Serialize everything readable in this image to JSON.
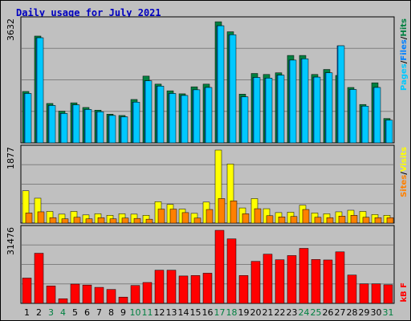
{
  "title": "Daily usage for July 2021",
  "colors": {
    "background": "#c0c0c0",
    "pages": "#00c8ff",
    "files": "#0080ff",
    "hits": "#008040",
    "visits": "#ffff00",
    "sites": "#ff8000",
    "kbytes": "#ff0000",
    "title": "#0000c0",
    "weekend_day": "#008040"
  },
  "chart_data": [
    {
      "type": "bar",
      "panel": "hits-files-pages",
      "y_max_label": "3632",
      "ylim": [
        0,
        3632
      ],
      "grid": true,
      "legend_labels": [
        "Pages",
        "/",
        "Files",
        "/",
        "Hits"
      ],
      "categories": [
        "1",
        "2",
        "3",
        "4",
        "5",
        "6",
        "7",
        "8",
        "9",
        "10",
        "11",
        "12",
        "13",
        "14",
        "15",
        "16",
        "17",
        "18",
        "19",
        "20",
        "21",
        "22",
        "23",
        "24",
        "25",
        "26",
        "27",
        "28",
        "29",
        "30",
        "31"
      ],
      "series": [
        {
          "name": "Hits",
          "values": [
            1540,
            3200,
            1180,
            950,
            1200,
            1060,
            980,
            860,
            820,
            1300,
            2000,
            1760,
            1560,
            1470,
            1680,
            1760,
            3630,
            3330,
            1460,
            2080,
            2050,
            2100,
            2620,
            2620,
            2050,
            2200,
            2020,
            1660,
            1150,
            1800,
            730
          ]
        },
        {
          "name": "Files",
          "values": [
            1480,
            3150,
            1120,
            880,
            1140,
            1000,
            930,
            820,
            780,
            1220,
            1860,
            1700,
            1480,
            1420,
            1590,
            1660,
            3510,
            3240,
            1380,
            1960,
            1940,
            2030,
            2480,
            2520,
            1970,
            2100,
            2910,
            1600,
            1100,
            1660,
            680
          ]
        },
        {
          "name": "Pages",
          "values": [
            1480,
            3150,
            1120,
            880,
            1140,
            1000,
            930,
            820,
            780,
            1220,
            1860,
            1700,
            1480,
            1420,
            1590,
            1660,
            3510,
            3240,
            1380,
            1960,
            1940,
            2030,
            2480,
            2520,
            1970,
            2100,
            2910,
            1600,
            1100,
            1660,
            680
          ]
        }
      ]
    },
    {
      "type": "bar",
      "panel": "visits-sites",
      "y_max_label": "1877",
      "ylim": [
        0,
        1877
      ],
      "grid": true,
      "legend_labels": [
        "Sites",
        "/",
        "Visits"
      ],
      "categories": [
        "1",
        "2",
        "3",
        "4",
        "5",
        "6",
        "7",
        "8",
        "9",
        "10",
        "11",
        "12",
        "13",
        "14",
        "15",
        "16",
        "17",
        "18",
        "19",
        "20",
        "21",
        "22",
        "23",
        "24",
        "25",
        "26",
        "27",
        "28",
        "29",
        "30",
        "31"
      ],
      "series": [
        {
          "name": "Visits",
          "values": [
            830,
            640,
            300,
            230,
            300,
            210,
            240,
            200,
            240,
            230,
            200,
            550,
            480,
            360,
            250,
            540,
            1877,
            1520,
            390,
            630,
            370,
            270,
            280,
            460,
            260,
            240,
            290,
            330,
            300,
            220,
            200
          ]
        },
        {
          "name": "Sites",
          "values": [
            260,
            290,
            140,
            110,
            150,
            110,
            140,
            110,
            130,
            120,
            100,
            360,
            360,
            270,
            130,
            350,
            630,
            570,
            240,
            370,
            190,
            160,
            170,
            350,
            150,
            140,
            180,
            200,
            150,
            140,
            140
          ]
        }
      ]
    },
    {
      "type": "bar",
      "panel": "kbytes",
      "y_max_label": "31476",
      "ylim": [
        0,
        31476
      ],
      "grid": true,
      "legend_labels": [
        "KBytes"
      ],
      "legend_text": "kB F",
      "categories": [
        "1",
        "2",
        "3",
        "4",
        "5",
        "6",
        "7",
        "8",
        "9",
        "10",
        "11",
        "12",
        "13",
        "14",
        "15",
        "16",
        "17",
        "18",
        "19",
        "20",
        "21",
        "22",
        "23",
        "24",
        "25",
        "26",
        "27",
        "28",
        "29",
        "30",
        "31"
      ],
      "series": [
        {
          "name": "KBytes",
          "values": [
            10900,
            21600,
            7500,
            2000,
            8300,
            7900,
            6900,
            6000,
            2700,
            7700,
            9000,
            14300,
            14300,
            11800,
            12000,
            13000,
            31476,
            27800,
            12000,
            18100,
            21200,
            18800,
            20600,
            23700,
            18900,
            18700,
            22200,
            12200,
            8400,
            8400,
            8000
          ]
        }
      ]
    }
  ],
  "x_labels": [
    {
      "label": "1",
      "weekend": false
    },
    {
      "label": "2",
      "weekend": false
    },
    {
      "label": "3",
      "weekend": true
    },
    {
      "label": "4",
      "weekend": true
    },
    {
      "label": "5",
      "weekend": false
    },
    {
      "label": "6",
      "weekend": false
    },
    {
      "label": "7",
      "weekend": false
    },
    {
      "label": "8",
      "weekend": false
    },
    {
      "label": "9",
      "weekend": false
    },
    {
      "label": "10",
      "weekend": true
    },
    {
      "label": "11",
      "weekend": true
    },
    {
      "label": "12",
      "weekend": false
    },
    {
      "label": "13",
      "weekend": false
    },
    {
      "label": "14",
      "weekend": false
    },
    {
      "label": "15",
      "weekend": false
    },
    {
      "label": "16",
      "weekend": false
    },
    {
      "label": "17",
      "weekend": true
    },
    {
      "label": "18",
      "weekend": true
    },
    {
      "label": "19",
      "weekend": false
    },
    {
      "label": "20",
      "weekend": false
    },
    {
      "label": "21",
      "weekend": false
    },
    {
      "label": "22",
      "weekend": false
    },
    {
      "label": "23",
      "weekend": false
    },
    {
      "label": "24",
      "weekend": true
    },
    {
      "label": "25",
      "weekend": true
    },
    {
      "label": "26",
      "weekend": false
    },
    {
      "label": "27",
      "weekend": false
    },
    {
      "label": "28",
      "weekend": false
    },
    {
      "label": "29",
      "weekend": false
    },
    {
      "label": "30",
      "weekend": false
    },
    {
      "label": "31",
      "weekend": true
    }
  ]
}
